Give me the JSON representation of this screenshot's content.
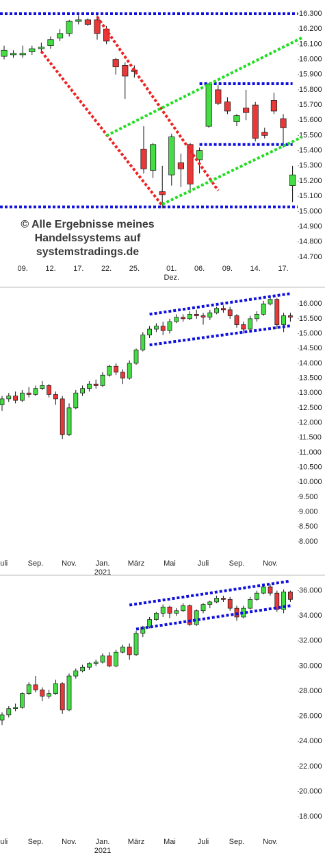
{
  "chart_data": [
    {
      "type": "candlestick",
      "up_color": "#44dd44",
      "down_color": "#e83838",
      "categories": [
        null,
        null,
        "09.",
        null,
        null,
        "12.",
        null,
        null,
        "17.",
        null,
        null,
        "22.",
        null,
        null,
        "25.",
        null,
        null,
        null,
        "01.",
        null,
        null,
        "06.",
        null,
        null,
        "09.",
        null,
        null,
        "14.",
        null,
        null,
        "17.",
        null
      ],
      "sublabels": [
        null,
        null,
        null,
        null,
        null,
        null,
        null,
        null,
        null,
        null,
        null,
        null,
        null,
        null,
        null,
        null,
        null,
        null,
        "Dez.",
        null,
        null,
        null,
        null,
        null,
        null,
        null,
        null,
        null,
        null,
        null,
        null,
        null
      ],
      "open": [
        16020,
        16030,
        16030,
        16050,
        16070,
        16090,
        16140,
        16170,
        16250,
        16260,
        16260,
        16200,
        16000,
        15960,
        15930,
        15410,
        15270,
        15130,
        15240,
        15320,
        15440,
        15340,
        15560,
        15800,
        15720,
        15590,
        15680,
        15700,
        15520,
        15730,
        15610,
        15170
      ],
      "high": [
        16090,
        16060,
        16090,
        16090,
        16110,
        16150,
        16200,
        16260,
        16290,
        16270,
        16290,
        16220,
        16010,
        15980,
        15960,
        15560,
        15450,
        15300,
        15510,
        15380,
        15450,
        15420,
        15840,
        15830,
        15750,
        15640,
        15800,
        15720,
        15550,
        15780,
        15640,
        15300
      ],
      "low": [
        16000,
        16010,
        16010,
        16030,
        16040,
        16070,
        16120,
        16150,
        16230,
        16220,
        16130,
        16100,
        15900,
        15740,
        15880,
        15250,
        15220,
        15020,
        15170,
        15160,
        15120,
        15250,
        15550,
        15700,
        15640,
        15560,
        15600,
        15460,
        15480,
        15640,
        15420,
        15060
      ],
      "close": [
        16060,
        16040,
        16040,
        16070,
        16080,
        16130,
        16170,
        16250,
        16260,
        16230,
        16170,
        16120,
        15950,
        15890,
        15920,
        15280,
        15440,
        15110,
        15490,
        15280,
        15180,
        15400,
        15840,
        15710,
        15660,
        15630,
        15650,
        15480,
        15500,
        15660,
        15550,
        15240
      ],
      "ylim": [
        14650,
        16370
      ],
      "yticks": [
        {
          "value": 14700,
          "label": "14.700"
        },
        {
          "value": 14800,
          "label": "14.800"
        },
        {
          "value": 14900,
          "label": "14.900"
        },
        {
          "value": 15000,
          "label": "15.000"
        },
        {
          "value": 15100,
          "label": "15.100"
        },
        {
          "value": 15200,
          "label": "15.200"
        },
        {
          "value": 15300,
          "label": "15.300"
        },
        {
          "value": 15400,
          "label": "15.400"
        },
        {
          "value": 15500,
          "label": "15.500"
        },
        {
          "value": 15600,
          "label": "15.600"
        },
        {
          "value": 15700,
          "label": "15.700"
        },
        {
          "value": 15800,
          "label": "15.800"
        },
        {
          "value": 15900,
          "label": "15.900"
        },
        {
          "value": 16000,
          "label": "16.000"
        },
        {
          "value": 16100,
          "label": "16.100"
        },
        {
          "value": 16200,
          "label": "16.200"
        },
        {
          "value": 16300,
          "label": "16.300"
        }
      ],
      "levels": [
        {
          "value": 16300,
          "color": "#1010dd"
        },
        {
          "value": 15030,
          "color": "#1010dd"
        }
      ],
      "lines": [
        {
          "x": [
            21,
            31
          ],
          "values": [
            15840,
            15840
          ],
          "color": "#1010dd"
        },
        {
          "x": [
            21,
            31
          ],
          "values": [
            15440,
            15440
          ],
          "color": "#1010dd"
        },
        {
          "x": [
            4,
            17
          ],
          "values": [
            16052,
            15038
          ],
          "color": "#ee2222"
        },
        {
          "x": [
            10,
            23
          ],
          "values": [
            16280,
            15137
          ],
          "color": "#ee2222"
        },
        {
          "x": [
            11,
            32
          ],
          "values": [
            15498,
            16142
          ],
          "color": "#22dd22"
        },
        {
          "x": [
            17,
            32
          ],
          "values": [
            15047,
            15489
          ],
          "color": "#22dd22"
        }
      ],
      "watermark": [
        "© Alle Ergebnisse meines",
        "Handelssystems auf",
        "systemstradings.de"
      ]
    },
    {
      "type": "candlestick",
      "up_color": "#44dd44",
      "down_color": "#e83838",
      "categories": [
        "Juli",
        null,
        null,
        null,
        null,
        "Sep.",
        null,
        null,
        null,
        null,
        "Nov.",
        null,
        null,
        null,
        null,
        "Jan.",
        null,
        null,
        null,
        null,
        "März",
        null,
        null,
        null,
        null,
        "Mai",
        null,
        null,
        null,
        null,
        "Juli",
        null,
        null,
        null,
        null,
        "Sep.",
        null,
        null,
        null,
        null,
        "Nov.",
        null,
        null,
        null
      ],
      "sublabels": [
        null,
        null,
        null,
        null,
        null,
        null,
        null,
        null,
        null,
        null,
        null,
        null,
        null,
        null,
        null,
        "2021",
        null,
        null,
        null,
        null,
        null,
        null,
        null,
        null,
        null,
        null,
        null,
        null,
        null,
        null,
        null,
        null,
        null,
        null,
        null,
        null,
        null,
        null,
        null,
        null,
        null,
        null,
        null,
        null
      ],
      "open": [
        12600,
        12800,
        12900,
        12750,
        13000,
        12950,
        13150,
        13250,
        12950,
        12800,
        11600,
        12500,
        13000,
        13150,
        13300,
        13250,
        13600,
        13900,
        13700,
        13500,
        14000,
        14450,
        14950,
        15150,
        15250,
        15100,
        15400,
        15550,
        15500,
        15650,
        15600,
        15550,
        15700,
        15850,
        15800,
        15600,
        15300,
        15150,
        15500,
        15650,
        16000,
        16150,
        15300,
        15600
      ],
      "high": [
        12900,
        13000,
        13050,
        13100,
        13200,
        13250,
        13400,
        13300,
        13050,
        12900,
        12650,
        13100,
        13250,
        13400,
        13450,
        13700,
        13950,
        14000,
        13800,
        14100,
        14500,
        15050,
        15250,
        15350,
        15400,
        15500,
        15650,
        15650,
        15750,
        15800,
        15700,
        15800,
        15900,
        15950,
        15900,
        15650,
        15400,
        15600,
        15750,
        16100,
        16300,
        16200,
        15700,
        15700
      ],
      "low": [
        12400,
        12700,
        12650,
        12700,
        12850,
        12900,
        13100,
        12850,
        12600,
        11450,
        11550,
        12450,
        12900,
        13050,
        13150,
        13200,
        13550,
        13600,
        13300,
        13450,
        13950,
        14400,
        14850,
        15050,
        14950,
        15000,
        15350,
        15400,
        15450,
        15500,
        15300,
        15450,
        15650,
        15700,
        15500,
        15200,
        15000,
        15050,
        15400,
        15600,
        15950,
        15150,
        15050,
        15400
      ],
      "close": [
        12800,
        12900,
        12750,
        13000,
        12950,
        13150,
        13250,
        12950,
        12800,
        11600,
        12500,
        13000,
        13150,
        13300,
        13250,
        13600,
        13900,
        13700,
        13500,
        14000,
        14450,
        14950,
        15150,
        15250,
        15100,
        15400,
        15550,
        15500,
        15650,
        15600,
        15550,
        15700,
        15850,
        15800,
        15600,
        15300,
        15150,
        15500,
        15650,
        16000,
        16150,
        15300,
        15600,
        15550
      ],
      "ylim": [
        7420,
        16420
      ],
      "yticks": [
        {
          "value": 8000,
          "label": "8.000"
        },
        {
          "value": 8500,
          "label": "8.500"
        },
        {
          "value": 9000,
          "label": "9.000"
        },
        {
          "value": 9500,
          "label": "9.500"
        },
        {
          "value": 10000,
          "label": "10.000"
        },
        {
          "value": 10500,
          "label": "10.500"
        },
        {
          "value": 11000,
          "label": "11.000"
        },
        {
          "value": 11500,
          "label": "11.500"
        },
        {
          "value": 12000,
          "label": "12.000"
        },
        {
          "value": 12500,
          "label": "12.500"
        },
        {
          "value": 13000,
          "label": "13.000"
        },
        {
          "value": 13500,
          "label": "13.500"
        },
        {
          "value": 14000,
          "label": "14.000"
        },
        {
          "value": 14500,
          "label": "14.500"
        },
        {
          "value": 15000,
          "label": "15.000"
        },
        {
          "value": 15500,
          "label": "15.500"
        },
        {
          "value": 16000,
          "label": "16.000"
        }
      ],
      "lines": [
        {
          "x": [
            22,
            43
          ],
          "values": [
            15650,
            16346
          ],
          "color": "#1010dd"
        },
        {
          "x": [
            22,
            43
          ],
          "values": [
            14617,
            15262
          ],
          "color": "#1010dd"
        }
      ]
    },
    {
      "type": "candlestick",
      "up_color": "#44dd44",
      "down_color": "#e83838",
      "categories": [
        "Juli",
        null,
        null,
        null,
        null,
        "Sep.",
        null,
        null,
        null,
        null,
        "Nov.",
        null,
        null,
        null,
        null,
        "Jan.",
        null,
        null,
        null,
        null,
        "März",
        null,
        null,
        null,
        null,
        "Mai",
        null,
        null,
        null,
        null,
        "Juli",
        null,
        null,
        null,
        null,
        "Sep.",
        null,
        null,
        null,
        null,
        "Nov.",
        null,
        null,
        null
      ],
      "sublabels": [
        null,
        null,
        null,
        null,
        null,
        null,
        null,
        null,
        null,
        null,
        null,
        null,
        null,
        null,
        null,
        "2021",
        null,
        null,
        null,
        null,
        null,
        null,
        null,
        null,
        null,
        null,
        null,
        null,
        null,
        null,
        null,
        null,
        null,
        null,
        null,
        null,
        null,
        null,
        null,
        null,
        null,
        null,
        null,
        null
      ],
      "open": [
        25700,
        26100,
        26600,
        26700,
        27800,
        28500,
        28100,
        27600,
        27800,
        28600,
        26500,
        29200,
        29600,
        29900,
        30200,
        30300,
        30800,
        30000,
        31100,
        31500,
        30900,
        32600,
        33100,
        33700,
        34200,
        34700,
        34200,
        34400,
        34800,
        33300,
        34400,
        34900,
        35100,
        35400,
        35300,
        34600,
        33900,
        34600,
        35300,
        35800,
        36300,
        35800,
        34500,
        35900
      ],
      "high": [
        26300,
        26800,
        27000,
        27900,
        28700,
        29200,
        28300,
        28100,
        28900,
        28700,
        29400,
        29800,
        30100,
        30300,
        30500,
        31000,
        31100,
        31300,
        31700,
        31800,
        32800,
        33200,
        33900,
        34300,
        34900,
        34800,
        34600,
        35000,
        34900,
        34500,
        35000,
        35200,
        35600,
        35600,
        35500,
        34800,
        34800,
        35500,
        36000,
        36500,
        36500,
        36000,
        36100,
        36000
      ],
      "low": [
        25300,
        25900,
        26400,
        26600,
        27700,
        27900,
        27200,
        27400,
        27700,
        26200,
        26400,
        29000,
        29500,
        29700,
        30000,
        30200,
        29900,
        29900,
        31000,
        30500,
        30800,
        32300,
        33000,
        33600,
        33900,
        33800,
        34000,
        34300,
        33200,
        33200,
        34200,
        34600,
        35000,
        35100,
        34400,
        33600,
        33800,
        34500,
        35200,
        35700,
        35600,
        34300,
        34200,
        35100
      ],
      "close": [
        26100,
        26600,
        26700,
        27800,
        28500,
        28100,
        27600,
        27800,
        28600,
        26500,
        29200,
        29600,
        29900,
        30200,
        30300,
        30800,
        30000,
        31100,
        31500,
        30900,
        32600,
        33100,
        33700,
        34200,
        34700,
        34200,
        34400,
        34800,
        33300,
        34400,
        34900,
        35100,
        35400,
        35300,
        34600,
        33900,
        34600,
        35300,
        35800,
        36300,
        35800,
        34500,
        35900,
        35300
      ],
      "ylim": [
        16700,
        36900
      ],
      "yticks": [
        {
          "value": 18000,
          "label": "18.000"
        },
        {
          "value": 20000,
          "label": "20.000"
        },
        {
          "value": 22000,
          "label": "22.000"
        },
        {
          "value": 24000,
          "label": "24.000"
        },
        {
          "value": 26000,
          "label": "26.000"
        },
        {
          "value": 28000,
          "label": "28.000"
        },
        {
          "value": 30000,
          "label": "30.000"
        },
        {
          "value": 32000,
          "label": "32.000"
        },
        {
          "value": 34000,
          "label": "34.000"
        },
        {
          "value": 36000,
          "label": "36.000"
        }
      ],
      "lines": [
        {
          "x": [
            19,
            43
          ],
          "values": [
            34851,
            36766
          ],
          "color": "#1010dd"
        },
        {
          "x": [
            20,
            43
          ],
          "values": [
            32936,
            34796
          ],
          "color": "#1010dd"
        }
      ]
    }
  ]
}
